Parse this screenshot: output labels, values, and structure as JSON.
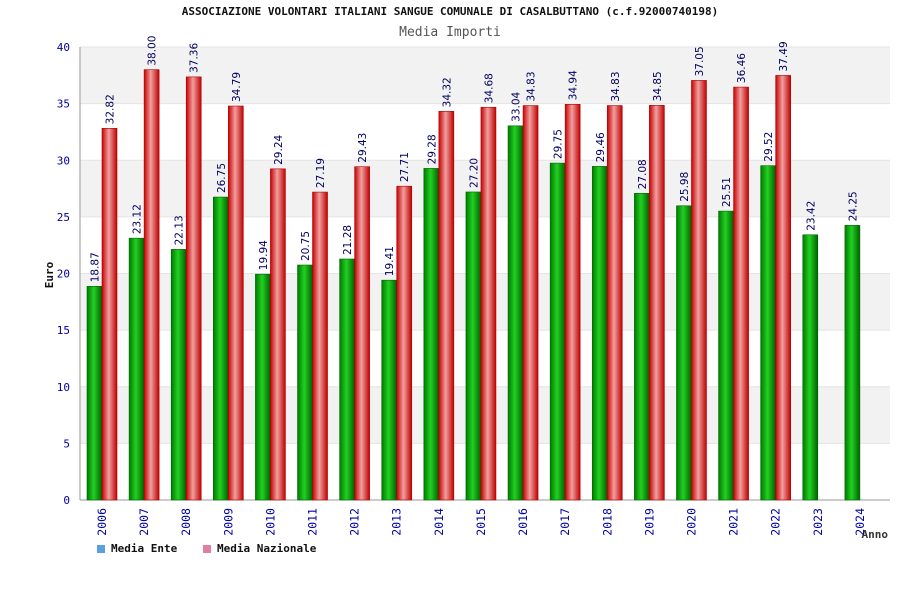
{
  "chart_data": {
    "type": "bar",
    "title": "ASSOCIAZIONE VOLONTARI ITALIANI SANGUE COMUNALE DI CASALBUTTANO (c.f.92000740198)",
    "subtitle": "Media Importi",
    "xlabel": "Anno",
    "ylabel": "Euro",
    "ylim": [
      0,
      40
    ],
    "yticks": [
      0,
      5,
      10,
      15,
      20,
      25,
      30,
      35,
      40
    ],
    "grid": true,
    "legend_position": "bottom-left",
    "categories": [
      "2006",
      "2007",
      "2008",
      "2009",
      "2010",
      "2011",
      "2012",
      "2013",
      "2014",
      "2015",
      "2016",
      "2017",
      "2018",
      "2019",
      "2020",
      "2021",
      "2022",
      "2023",
      "2024"
    ],
    "series": [
      {
        "name": "Media Ente",
        "values": [
          18.87,
          23.12,
          22.13,
          26.75,
          19.94,
          20.75,
          21.28,
          19.41,
          29.28,
          27.2,
          33.04,
          29.75,
          29.46,
          27.08,
          25.98,
          25.51,
          29.52,
          23.42,
          24.25
        ],
        "labels": [
          "18.87",
          "23.12",
          "22.13",
          "26.75",
          "19.94",
          "20.75",
          "21.28",
          "19.41",
          "29.28",
          "27.20",
          "33.04",
          "29.75",
          "29.46",
          "27.08",
          "25.98",
          "25.51",
          "29.52",
          "23.42",
          "24.25"
        ]
      },
      {
        "name": "Media Nazionale",
        "values": [
          32.82,
          38.0,
          37.36,
          34.79,
          29.24,
          27.19,
          29.43,
          27.71,
          34.32,
          34.68,
          34.83,
          34.94,
          34.83,
          34.85,
          37.05,
          36.46,
          37.49,
          null,
          null
        ],
        "labels": [
          "32.82",
          "38.00",
          "37.36",
          "34.79",
          "29.24",
          "27.19",
          "29.43",
          "27.71",
          "34.32",
          "34.68",
          "34.83",
          "34.94",
          "34.83",
          "34.85",
          "37.05",
          "36.46",
          "37.49",
          "",
          ""
        ]
      }
    ],
    "colors": {
      "series1_fill": "#00b000",
      "series1_dark": "#006600",
      "series2_fill": "#e02020",
      "series2_dark": "#b00000",
      "legend1": "#5aa0e0",
      "legend2": "#e080a0",
      "axis_text": "#0000a0",
      "value_label": "#000060",
      "band": "#f2f2f2"
    }
  }
}
